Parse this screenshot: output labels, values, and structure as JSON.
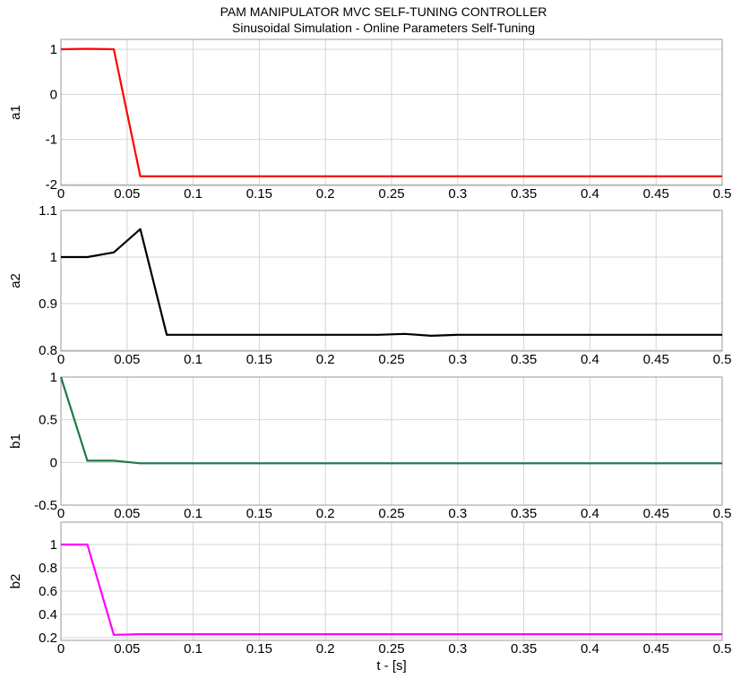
{
  "title": "PAM MANIPULATOR MVC SELF-TUNING CONTROLLER",
  "subtitle": "Sinusoidal Simulation - Online Parameters Self-Tuning",
  "xlabel": "t - [s]",
  "chart_data": [
    {
      "type": "line",
      "ylabel": "a1",
      "color": "#ff0000",
      "xlim": [
        0,
        0.5
      ],
      "ylim": [
        -2,
        1.2
      ],
      "xticks": [
        "0",
        "0.05",
        "0.1",
        "0.15",
        "0.2",
        "0.25",
        "0.3",
        "0.35",
        "0.4",
        "0.45",
        "0.5"
      ],
      "xtick_values": [
        0,
        0.05,
        0.1,
        0.15,
        0.2,
        0.25,
        0.3,
        0.35,
        0.4,
        0.45,
        0.5
      ],
      "yticks": [
        "1",
        "0",
        "-1",
        "-2"
      ],
      "ytick_values": [
        1,
        0,
        -1,
        -2
      ],
      "grid": true,
      "series": [
        {
          "x": [
            0,
            0.02,
            0.04,
            0.06,
            0.08,
            0.1,
            0.2,
            0.3,
            0.4,
            0.5
          ],
          "y": [
            1.0,
            1.01,
            1.0,
            -1.82,
            -1.82,
            -1.82,
            -1.82,
            -1.82,
            -1.82,
            -1.82
          ]
        }
      ]
    },
    {
      "type": "line",
      "ylabel": "a2",
      "color": "#000000",
      "xlim": [
        0,
        0.5
      ],
      "ylim": [
        0.8,
        1.1
      ],
      "xticks": [
        "0",
        "0.05",
        "0.1",
        "0.15",
        "0.2",
        "0.25",
        "0.3",
        "0.35",
        "0.4",
        "0.45",
        "0.5"
      ],
      "xtick_values": [
        0,
        0.05,
        0.1,
        0.15,
        0.2,
        0.25,
        0.3,
        0.35,
        0.4,
        0.45,
        0.5
      ],
      "yticks": [
        "1.1",
        "1",
        "0.9",
        "0.8"
      ],
      "ytick_values": [
        1.1,
        1.0,
        0.9,
        0.8
      ],
      "grid": true,
      "series": [
        {
          "x": [
            0,
            0.02,
            0.04,
            0.06,
            0.08,
            0.1,
            0.2,
            0.24,
            0.26,
            0.28,
            0.3,
            0.4,
            0.5
          ],
          "y": [
            1.0,
            1.0,
            1.01,
            1.06,
            0.833,
            0.833,
            0.833,
            0.833,
            0.835,
            0.831,
            0.833,
            0.833,
            0.833
          ]
        }
      ]
    },
    {
      "type": "line",
      "ylabel": "b1",
      "color": "#1e7a4a",
      "xlim": [
        0,
        0.5
      ],
      "ylim": [
        -0.5,
        1
      ],
      "xticks": [
        "0",
        "0.05",
        "0.1",
        "0.15",
        "0.2",
        "0.25",
        "0.3",
        "0.35",
        "0.4",
        "0.45",
        "0.5"
      ],
      "xtick_values": [
        0,
        0.05,
        0.1,
        0.15,
        0.2,
        0.25,
        0.3,
        0.35,
        0.4,
        0.45,
        0.5
      ],
      "yticks": [
        "1",
        "0.5",
        "0",
        "-0.5"
      ],
      "ytick_values": [
        1,
        0.5,
        0,
        -0.5
      ],
      "grid": true,
      "series": [
        {
          "x": [
            0,
            0.02,
            0.04,
            0.06,
            0.1,
            0.2,
            0.3,
            0.4,
            0.5
          ],
          "y": [
            1.0,
            0.02,
            0.02,
            -0.01,
            -0.01,
            -0.01,
            -0.01,
            -0.01,
            -0.01
          ]
        }
      ]
    },
    {
      "type": "line",
      "ylabel": "b2",
      "color": "#ff00ff",
      "xlim": [
        0,
        0.5
      ],
      "ylim": [
        0.2,
        1.1
      ],
      "xticks": [
        "0",
        "0.05",
        "0.1",
        "0.15",
        "0.2",
        "0.25",
        "0.3",
        "0.35",
        "0.4",
        "0.45",
        "0.5"
      ],
      "xtick_values": [
        0,
        0.05,
        0.1,
        0.15,
        0.2,
        0.25,
        0.3,
        0.35,
        0.4,
        0.45,
        0.5
      ],
      "yticks": [
        "1",
        "0.8",
        "0.6",
        "0.4",
        "0.2"
      ],
      "ytick_values": [
        1,
        0.8,
        0.6,
        0.4,
        0.2
      ],
      "grid": true,
      "series": [
        {
          "x": [
            0,
            0.02,
            0.04,
            0.06,
            0.1,
            0.2,
            0.3,
            0.4,
            0.5
          ],
          "y": [
            1.0,
            1.0,
            0.225,
            0.23,
            0.23,
            0.23,
            0.23,
            0.23,
            0.23
          ]
        }
      ]
    }
  ]
}
